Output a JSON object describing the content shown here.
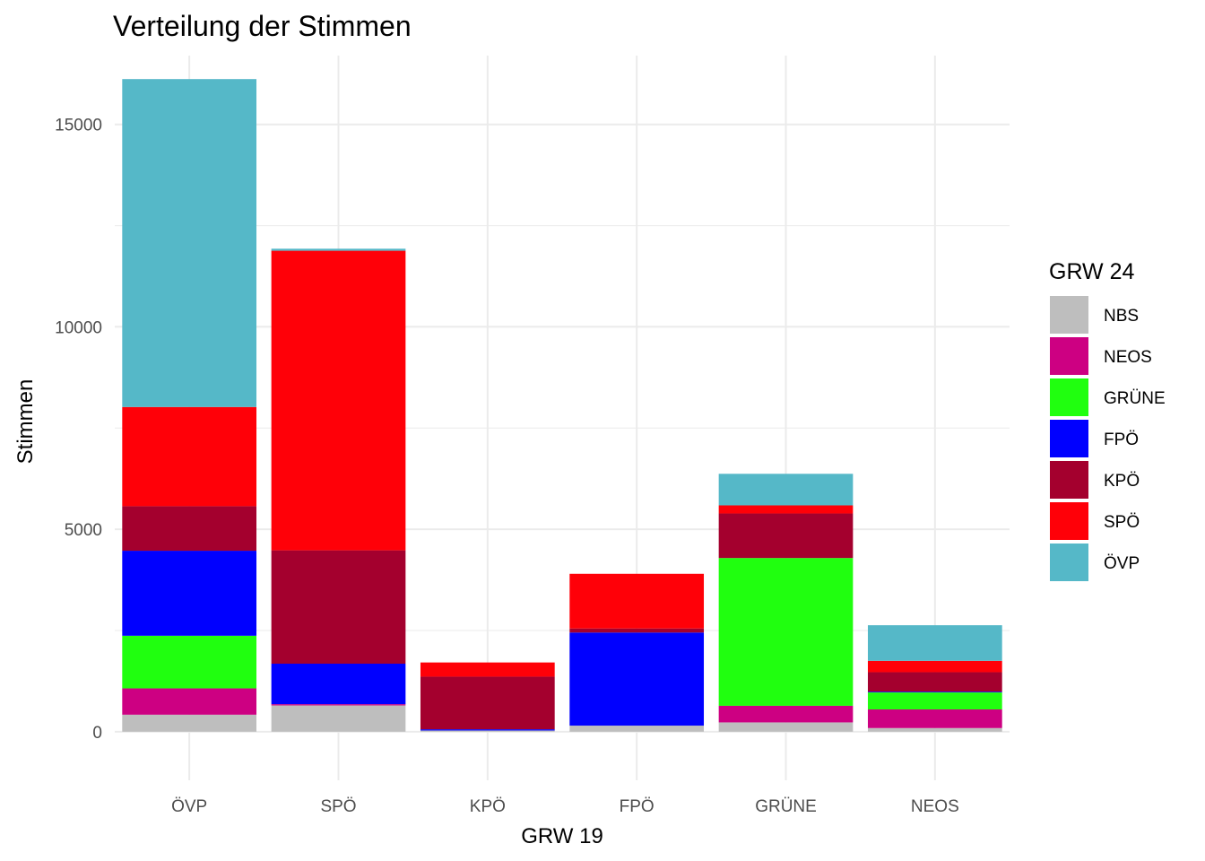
{
  "chart_data": {
    "type": "bar",
    "stacked": true,
    "title": "Verteilung der Stimmen",
    "xlabel": "GRW 19",
    "ylabel": "Stimmen",
    "ylim": [
      -1200,
      16700
    ],
    "yticks": [
      0,
      5000,
      10000,
      15000
    ],
    "yticks_minor": [
      2500,
      7500,
      12500
    ],
    "categories": [
      "ÖVP",
      "SPÖ",
      "KPÖ",
      "FPÖ",
      "GRÜNE",
      "NEOS"
    ],
    "legend_title": "GRW 24",
    "legend_position": "right",
    "series": [
      {
        "name": "NBS",
        "color": "#bebebe",
        "values": [
          420,
          650,
          30,
          150,
          230,
          90
        ]
      },
      {
        "name": "NEOS",
        "color": "#cd0082",
        "values": [
          650,
          30,
          0,
          0,
          410,
          460
        ]
      },
      {
        "name": "GRÜNE",
        "color": "#20ff0f",
        "values": [
          1300,
          0,
          0,
          0,
          3650,
          420
        ]
      },
      {
        "name": "FPÖ",
        "color": "#0000ff",
        "values": [
          2100,
          1000,
          30,
          2300,
          0,
          20
        ]
      },
      {
        "name": "KPÖ",
        "color": "#a4002e",
        "values": [
          1100,
          2800,
          1300,
          100,
          1100,
          480
        ]
      },
      {
        "name": "SPÖ",
        "color": "#ff0008",
        "values": [
          2450,
          7400,
          350,
          1350,
          200,
          280
        ]
      },
      {
        "name": "ÖVP",
        "color": "#55b8c8",
        "values": [
          8100,
          50,
          0,
          0,
          780,
          880
        ]
      }
    ]
  }
}
